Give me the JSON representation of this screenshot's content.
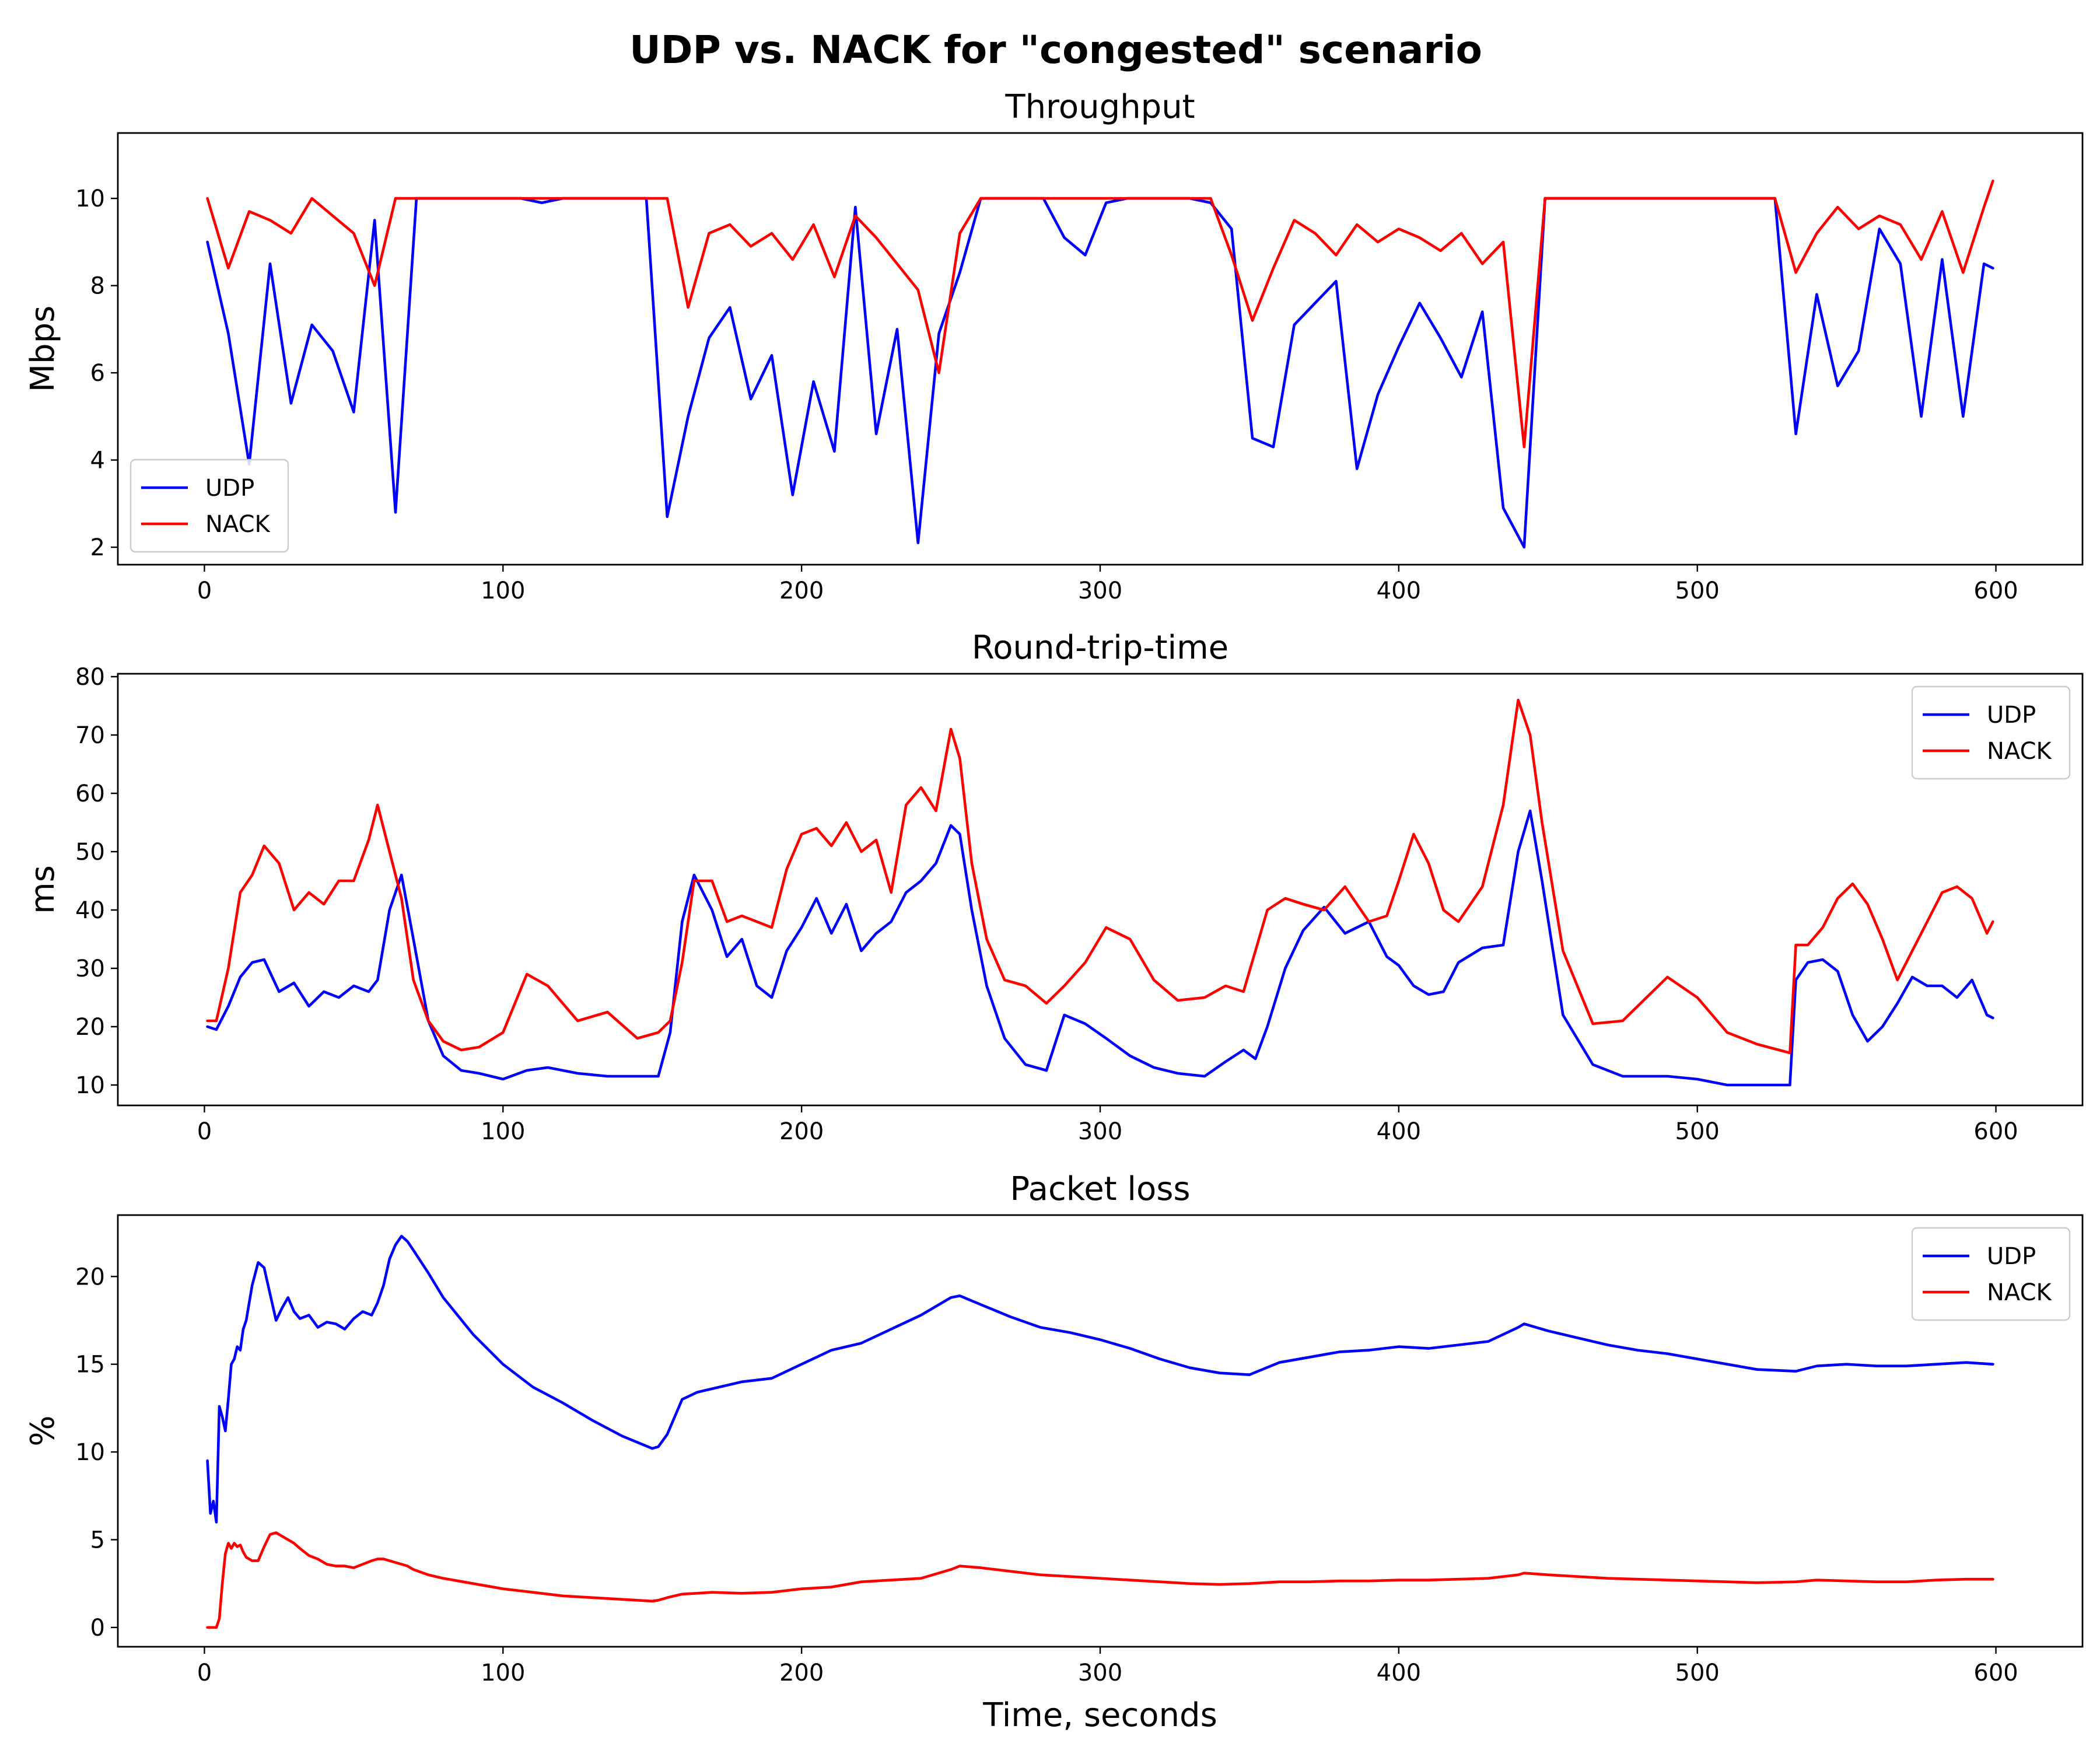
{
  "figure": {
    "title": "UDP vs. NACK for \"congested\" scenario",
    "xlabel": "Time, seconds"
  },
  "colors": {
    "UDP": "#0000ff",
    "NACK": "#ff0000"
  },
  "chart_data": [
    {
      "type": "line",
      "title": "Throughput",
      "xlabel": "",
      "ylabel": "Mbps",
      "xlim": [
        -29,
        629
      ],
      "ylim": [
        1.6,
        11.5
      ],
      "xticks": [
        0,
        100,
        200,
        300,
        400,
        500,
        600
      ],
      "yticks": [
        2,
        4,
        6,
        8,
        10
      ],
      "legend": "lower-left",
      "x": [
        1,
        8,
        15,
        22,
        29,
        36,
        43,
        50,
        57,
        64,
        71,
        78,
        85,
        92,
        99,
        106,
        113,
        120,
        127,
        134,
        141,
        148,
        155,
        162,
        169,
        176,
        183,
        190,
        197,
        204,
        211,
        218,
        225,
        232,
        239,
        246,
        253,
        260,
        267,
        274,
        281,
        288,
        295,
        302,
        309,
        316,
        323,
        330,
        337,
        344,
        351,
        358,
        365,
        372,
        379,
        386,
        393,
        400,
        407,
        414,
        421,
        428,
        435,
        442,
        449,
        456,
        463,
        470,
        477,
        484,
        491,
        498,
        505,
        512,
        519,
        526,
        533,
        540,
        547,
        554,
        561,
        568,
        575,
        582,
        589,
        596,
        599
      ],
      "series": [
        {
          "name": "UDP",
          "values": [
            9.0,
            6.9,
            3.9,
            8.5,
            5.3,
            7.1,
            6.5,
            5.1,
            9.5,
            2.8,
            10.0,
            10.0,
            10.0,
            10.0,
            10.0,
            10.0,
            9.9,
            10.0,
            10.0,
            10.0,
            10.0,
            10.0,
            2.7,
            5.0,
            6.8,
            7.5,
            5.4,
            6.4,
            3.2,
            5.8,
            4.2,
            9.8,
            4.6,
            7.0,
            2.1,
            6.9,
            8.3,
            10.0,
            10.0,
            10.0,
            10.0,
            9.1,
            8.7,
            9.9,
            10.0,
            10.0,
            10.0,
            10.0,
            9.9,
            9.3,
            4.5,
            4.3,
            7.1,
            7.6,
            8.1,
            3.8,
            5.5,
            6.6,
            7.6,
            6.8,
            5.9,
            7.4,
            2.9,
            2.0,
            10.0,
            10.0,
            10.0,
            10.0,
            10.0,
            10.0,
            10.0,
            10.0,
            10.0,
            10.0,
            10.0,
            10.0,
            4.6,
            7.8,
            5.7,
            6.5,
            9.3,
            8.5,
            5.0,
            8.6,
            5.0,
            8.5,
            8.4
          ]
        },
        {
          "name": "NACK",
          "values": [
            10.0,
            8.4,
            9.7,
            9.5,
            9.2,
            10.0,
            9.6,
            9.2,
            8.0,
            10.0,
            10.0,
            10.0,
            10.0,
            10.0,
            10.0,
            10.0,
            10.0,
            10.0,
            10.0,
            10.0,
            10.0,
            10.0,
            10.0,
            7.5,
            9.2,
            9.4,
            8.9,
            9.2,
            8.6,
            9.4,
            8.2,
            9.6,
            9.1,
            8.5,
            7.9,
            6.0,
            9.2,
            10.0,
            10.0,
            10.0,
            10.0,
            10.0,
            10.0,
            10.0,
            10.0,
            10.0,
            10.0,
            10.0,
            10.0,
            8.7,
            7.2,
            8.4,
            9.5,
            9.2,
            8.7,
            9.4,
            9.0,
            9.3,
            9.1,
            8.8,
            9.2,
            8.5,
            9.0,
            4.3,
            10.0,
            10.0,
            10.0,
            10.0,
            10.0,
            10.0,
            10.0,
            10.0,
            10.0,
            10.0,
            10.0,
            10.0,
            8.3,
            9.2,
            9.8,
            9.3,
            9.6,
            9.4,
            8.6,
            9.7,
            8.3,
            9.8,
            10.4
          ]
        }
      ]
    },
    {
      "type": "line",
      "title": "Round-trip-time",
      "xlabel": "",
      "ylabel": "ms",
      "xlim": [
        -29,
        629
      ],
      "ylim": [
        6.5,
        80.5
      ],
      "xticks": [
        0,
        100,
        200,
        300,
        400,
        500,
        600
      ],
      "yticks": [
        10,
        20,
        30,
        40,
        50,
        60,
        70,
        80
      ],
      "legend": "upper-right",
      "x": [
        1,
        4,
        8,
        12,
        16,
        20,
        25,
        30,
        35,
        40,
        45,
        50,
        55,
        58,
        62,
        66,
        70,
        75,
        80,
        86,
        92,
        100,
        108,
        115,
        125,
        135,
        145,
        152,
        156,
        160,
        164,
        170,
        175,
        180,
        185,
        190,
        195,
        200,
        205,
        210,
        215,
        220,
        225,
        230,
        235,
        240,
        245,
        250,
        253,
        257,
        262,
        268,
        275,
        282,
        288,
        295,
        302,
        310,
        318,
        326,
        335,
        342,
        348,
        352,
        356,
        362,
        368,
        375,
        382,
        390,
        396,
        400,
        405,
        410,
        415,
        420,
        428,
        435,
        440,
        444,
        448,
        455,
        465,
        475,
        485,
        490,
        500,
        510,
        520,
        531,
        533,
        537,
        542,
        547,
        552,
        557,
        562,
        567,
        572,
        577,
        582,
        587,
        592,
        597,
        599
      ],
      "series": [
        {
          "name": "UDP",
          "values": [
            20.0,
            19.5,
            23.5,
            28.5,
            31.0,
            31.5,
            26.0,
            27.5,
            23.5,
            26.0,
            25.0,
            27.0,
            26.0,
            28.0,
            40.0,
            46.0,
            35.0,
            21.0,
            15.0,
            12.5,
            12.0,
            11.0,
            12.5,
            13.0,
            12.0,
            11.5,
            11.5,
            11.5,
            19.0,
            38.0,
            46.0,
            40.0,
            32.0,
            35.0,
            27.0,
            25.0,
            33.0,
            37.0,
            42.0,
            36.0,
            41.0,
            33.0,
            36.0,
            38.0,
            43.0,
            45.0,
            48.0,
            54.5,
            53.0,
            40.0,
            27.0,
            18.0,
            13.5,
            12.5,
            22.0,
            20.5,
            18.0,
            15.0,
            13.0,
            12.0,
            11.5,
            14.0,
            16.0,
            14.5,
            20.0,
            30.0,
            36.5,
            40.5,
            36.0,
            38.0,
            32.0,
            30.5,
            27.0,
            25.5,
            26.0,
            31.0,
            33.5,
            34.0,
            50.0,
            57.0,
            45.0,
            22.0,
            13.5,
            11.5,
            11.5,
            11.5,
            11.0,
            10.0,
            10.0,
            10.0,
            28.0,
            31.0,
            31.5,
            29.5,
            22.0,
            17.5,
            20.0,
            24.0,
            28.5,
            27.0,
            27.0,
            25.0,
            28.0,
            22.0,
            21.5
          ]
        },
        {
          "name": "NACK",
          "values": [
            21.0,
            21.0,
            30.0,
            43.0,
            46.0,
            51.0,
            48.0,
            40.0,
            43.0,
            41.0,
            45.0,
            45.0,
            52.0,
            58.0,
            50.0,
            42.0,
            28.0,
            21.0,
            17.5,
            16.0,
            16.5,
            19.0,
            29.0,
            27.0,
            21.0,
            22.5,
            18.0,
            19.0,
            21.0,
            31.0,
            45.0,
            45.0,
            38.0,
            39.0,
            38.0,
            37.0,
            47.0,
            53.0,
            54.0,
            51.0,
            55.0,
            50.0,
            52.0,
            43.0,
            58.0,
            61.0,
            57.0,
            71.0,
            66.0,
            48.0,
            35.0,
            28.0,
            27.0,
            24.0,
            27.0,
            31.0,
            37.0,
            35.0,
            28.0,
            24.5,
            25.0,
            27.0,
            26.0,
            33.0,
            40.0,
            42.0,
            41.0,
            40.0,
            44.0,
            38.0,
            39.0,
            45.0,
            53.0,
            48.0,
            40.0,
            38.0,
            44.0,
            58.0,
            76.0,
            70.0,
            55.0,
            33.0,
            20.5,
            21.0,
            26.0,
            28.5,
            25.0,
            19.0,
            17.0,
            15.5,
            34.0,
            34.0,
            37.0,
            42.0,
            44.5,
            41.0,
            35.0,
            28.0,
            33.0,
            38.0,
            43.0,
            44.0,
            42.0,
            36.0,
            38.0
          ]
        }
      ]
    },
    {
      "type": "line",
      "title": "Packet loss",
      "xlabel": "Time, seconds",
      "ylabel": "%",
      "xlim": [
        -29,
        629
      ],
      "ylim": [
        -1.1,
        23.5
      ],
      "xticks": [
        0,
        100,
        200,
        300,
        400,
        500,
        600
      ],
      "yticks": [
        0,
        5,
        10,
        15,
        20
      ],
      "legend": "upper-right",
      "x": [
        1,
        2,
        3,
        4,
        5,
        6,
        7,
        8,
        9,
        10,
        11,
        12,
        13,
        14,
        16,
        18,
        20,
        22,
        24,
        26,
        28,
        30,
        32,
        35,
        38,
        41,
        44,
        47,
        50,
        53,
        56,
        58,
        60,
        62,
        64,
        66,
        68,
        70,
        75,
        80,
        90,
        100,
        110,
        120,
        130,
        140,
        150,
        152,
        155,
        160,
        165,
        170,
        180,
        190,
        200,
        210,
        220,
        230,
        240,
        250,
        253,
        260,
        270,
        280,
        290,
        300,
        310,
        320,
        330,
        340,
        350,
        360,
        370,
        380,
        390,
        400,
        410,
        420,
        430,
        440,
        442,
        450,
        460,
        470,
        480,
        490,
        500,
        510,
        520,
        533,
        540,
        550,
        560,
        570,
        580,
        590,
        599
      ],
      "series": [
        {
          "name": "UDP",
          "values": [
            9.5,
            6.5,
            7.2,
            6.0,
            12.6,
            12.0,
            11.2,
            13.0,
            15.0,
            15.3,
            16.0,
            15.8,
            17.0,
            17.5,
            19.5,
            20.8,
            20.5,
            19.0,
            17.5,
            18.2,
            18.8,
            18.0,
            17.6,
            17.8,
            17.1,
            17.4,
            17.3,
            17.0,
            17.6,
            18.0,
            17.8,
            18.5,
            19.5,
            21.0,
            21.8,
            22.3,
            22.0,
            21.5,
            20.2,
            18.8,
            16.7,
            15.0,
            13.7,
            12.8,
            11.8,
            10.9,
            10.2,
            10.3,
            11.0,
            13.0,
            13.4,
            13.6,
            14.0,
            14.2,
            15.0,
            15.8,
            16.2,
            17.0,
            17.8,
            18.8,
            18.9,
            18.4,
            17.7,
            17.1,
            16.8,
            16.4,
            15.9,
            15.3,
            14.8,
            14.5,
            14.4,
            15.1,
            15.4,
            15.7,
            15.8,
            16.0,
            15.9,
            16.1,
            16.3,
            17.1,
            17.3,
            16.9,
            16.5,
            16.1,
            15.8,
            15.6,
            15.3,
            15.0,
            14.7,
            14.6,
            14.9,
            15.0,
            14.9,
            14.9,
            15.0,
            15.1,
            15.0
          ]
        },
        {
          "name": "NACK",
          "values": [
            0.0,
            0.0,
            0.0,
            0.0,
            0.5,
            2.5,
            4.2,
            4.8,
            4.5,
            4.8,
            4.6,
            4.7,
            4.3,
            4.0,
            3.8,
            3.8,
            4.6,
            5.3,
            5.4,
            5.2,
            5.0,
            4.8,
            4.5,
            4.1,
            3.9,
            3.6,
            3.5,
            3.5,
            3.4,
            3.6,
            3.8,
            3.9,
            3.9,
            3.8,
            3.7,
            3.6,
            3.5,
            3.3,
            3.0,
            2.8,
            2.5,
            2.2,
            2.0,
            1.8,
            1.7,
            1.6,
            1.5,
            1.55,
            1.7,
            1.9,
            1.95,
            2.0,
            1.95,
            2.0,
            2.2,
            2.3,
            2.6,
            2.7,
            2.8,
            3.3,
            3.5,
            3.4,
            3.2,
            3.0,
            2.9,
            2.8,
            2.7,
            2.6,
            2.5,
            2.45,
            2.5,
            2.6,
            2.6,
            2.65,
            2.65,
            2.7,
            2.7,
            2.75,
            2.8,
            3.0,
            3.1,
            3.0,
            2.9,
            2.8,
            2.75,
            2.7,
            2.65,
            2.6,
            2.55,
            2.6,
            2.7,
            2.65,
            2.6,
            2.6,
            2.7,
            2.75,
            2.75
          ]
        }
      ]
    }
  ]
}
